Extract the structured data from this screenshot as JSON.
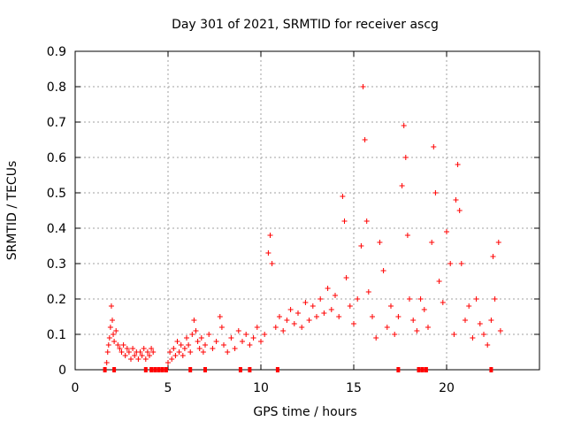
{
  "chart_data": {
    "type": "scatter",
    "title": "Day 301 of 2021, SRMTID for receiver ascg",
    "xlabel": "GPS time / hours",
    "ylabel": "SRMTID / TECUs",
    "xlim": [
      0,
      25
    ],
    "ylim": [
      0,
      0.9
    ],
    "xticks": [
      "0",
      "5",
      "10",
      "15",
      "20"
    ],
    "yticks": [
      "0",
      "0.1",
      "0.2",
      "0.3",
      "0.4",
      "0.5",
      "0.6",
      "0.7",
      "0.8",
      "0.9"
    ],
    "grid": true,
    "marker": "plus",
    "color": "#ff0000",
    "series": [
      {
        "name": "SRMTID",
        "points": [
          [
            1.7,
            0.02
          ],
          [
            1.75,
            0.05
          ],
          [
            1.8,
            0.07
          ],
          [
            1.85,
            0.09
          ],
          [
            1.9,
            0.12
          ],
          [
            1.95,
            0.18
          ],
          [
            2.0,
            0.14
          ],
          [
            2.05,
            0.1
          ],
          [
            2.1,
            0.08
          ],
          [
            2.2,
            0.11
          ],
          [
            2.3,
            0.07
          ],
          [
            2.4,
            0.06
          ],
          [
            2.5,
            0.05
          ],
          [
            2.6,
            0.07
          ],
          [
            2.7,
            0.04
          ],
          [
            2.8,
            0.06
          ],
          [
            2.9,
            0.05
          ],
          [
            3.0,
            0.03
          ],
          [
            3.1,
            0.06
          ],
          [
            3.2,
            0.04
          ],
          [
            3.3,
            0.05
          ],
          [
            3.4,
            0.03
          ],
          [
            3.5,
            0.05
          ],
          [
            3.6,
            0.04
          ],
          [
            3.7,
            0.06
          ],
          [
            3.8,
            0.03
          ],
          [
            3.9,
            0.05
          ],
          [
            4.0,
            0.04
          ],
          [
            4.1,
            0.06
          ],
          [
            4.2,
            0.05
          ],
          [
            5.0,
            0.02
          ],
          [
            5.1,
            0.05
          ],
          [
            5.2,
            0.03
          ],
          [
            5.3,
            0.06
          ],
          [
            5.4,
            0.04
          ],
          [
            5.5,
            0.08
          ],
          [
            5.6,
            0.05
          ],
          [
            5.7,
            0.07
          ],
          [
            5.8,
            0.04
          ],
          [
            5.9,
            0.06
          ],
          [
            6.0,
            0.09
          ],
          [
            6.1,
            0.07
          ],
          [
            6.2,
            0.05
          ],
          [
            6.3,
            0.1
          ],
          [
            6.4,
            0.14
          ],
          [
            6.5,
            0.11
          ],
          [
            6.6,
            0.08
          ],
          [
            6.7,
            0.06
          ],
          [
            6.8,
            0.09
          ],
          [
            6.9,
            0.05
          ],
          [
            7.0,
            0.07
          ],
          [
            7.2,
            0.1
          ],
          [
            7.4,
            0.06
          ],
          [
            7.6,
            0.08
          ],
          [
            7.8,
            0.15
          ],
          [
            7.9,
            0.12
          ],
          [
            8.0,
            0.07
          ],
          [
            8.2,
            0.05
          ],
          [
            8.4,
            0.09
          ],
          [
            8.6,
            0.06
          ],
          [
            8.8,
            0.11
          ],
          [
            9.0,
            0.08
          ],
          [
            9.2,
            0.1
          ],
          [
            9.4,
            0.07
          ],
          [
            9.6,
            0.09
          ],
          [
            9.8,
            0.12
          ],
          [
            10.0,
            0.08
          ],
          [
            10.2,
            0.1
          ],
          [
            10.4,
            0.33
          ],
          [
            10.5,
            0.38
          ],
          [
            10.6,
            0.3
          ],
          [
            10.8,
            0.12
          ],
          [
            11.0,
            0.15
          ],
          [
            11.2,
            0.11
          ],
          [
            11.4,
            0.14
          ],
          [
            11.6,
            0.17
          ],
          [
            11.8,
            0.13
          ],
          [
            12.0,
            0.16
          ],
          [
            12.2,
            0.12
          ],
          [
            12.4,
            0.19
          ],
          [
            12.6,
            0.14
          ],
          [
            12.8,
            0.18
          ],
          [
            13.0,
            0.15
          ],
          [
            13.2,
            0.2
          ],
          [
            13.4,
            0.16
          ],
          [
            13.6,
            0.23
          ],
          [
            13.8,
            0.17
          ],
          [
            14.0,
            0.21
          ],
          [
            14.2,
            0.15
          ],
          [
            14.4,
            0.49
          ],
          [
            14.5,
            0.42
          ],
          [
            14.6,
            0.26
          ],
          [
            14.8,
            0.18
          ],
          [
            15.0,
            0.13
          ],
          [
            15.2,
            0.2
          ],
          [
            15.4,
            0.35
          ],
          [
            15.5,
            0.8
          ],
          [
            15.6,
            0.65
          ],
          [
            15.7,
            0.42
          ],
          [
            15.8,
            0.22
          ],
          [
            16.0,
            0.15
          ],
          [
            16.2,
            0.09
          ],
          [
            16.4,
            0.36
          ],
          [
            16.6,
            0.28
          ],
          [
            16.8,
            0.12
          ],
          [
            17.0,
            0.18
          ],
          [
            17.2,
            0.1
          ],
          [
            17.4,
            0.15
          ],
          [
            17.6,
            0.52
          ],
          [
            17.7,
            0.69
          ],
          [
            17.8,
            0.6
          ],
          [
            17.9,
            0.38
          ],
          [
            18.0,
            0.2
          ],
          [
            18.2,
            0.14
          ],
          [
            18.4,
            0.11
          ],
          [
            18.6,
            0.2
          ],
          [
            18.8,
            0.17
          ],
          [
            19.0,
            0.12
          ],
          [
            19.2,
            0.36
          ],
          [
            19.3,
            0.63
          ],
          [
            19.4,
            0.5
          ],
          [
            19.6,
            0.25
          ],
          [
            19.8,
            0.19
          ],
          [
            20.0,
            0.39
          ],
          [
            20.2,
            0.3
          ],
          [
            20.4,
            0.1
          ],
          [
            20.5,
            0.48
          ],
          [
            20.6,
            0.58
          ],
          [
            20.7,
            0.45
          ],
          [
            20.8,
            0.3
          ],
          [
            21.0,
            0.14
          ],
          [
            21.2,
            0.18
          ],
          [
            21.4,
            0.09
          ],
          [
            21.6,
            0.2
          ],
          [
            21.8,
            0.13
          ],
          [
            22.0,
            0.1
          ],
          [
            22.2,
            0.07
          ],
          [
            22.4,
            0.14
          ],
          [
            22.5,
            0.32
          ],
          [
            22.6,
            0.2
          ],
          [
            22.8,
            0.36
          ],
          [
            22.9,
            0.11
          ]
        ]
      }
    ],
    "baseline_markers_x": [
      1.6,
      2.1,
      3.8,
      4.1,
      4.3,
      4.5,
      4.7,
      4.9,
      6.2,
      7.0,
      8.9,
      9.4,
      10.9,
      17.4,
      18.5,
      18.7,
      18.9,
      22.4
    ]
  }
}
